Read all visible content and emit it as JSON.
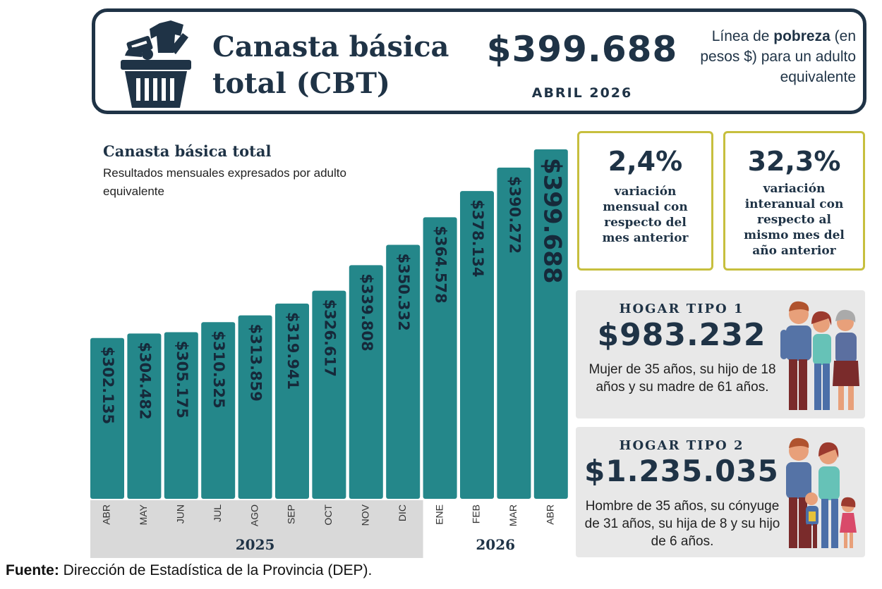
{
  "banner": {
    "title": "Canasta básica total (CBT)",
    "amount": "$399.688",
    "period": "ABRIL 2026",
    "desc_prefix": "Línea de",
    "desc_bold": "pobreza",
    "desc_suffix": "(en pesos $) para un adulto equivalente",
    "icon": "shopping-basket-icon"
  },
  "chart_data": {
    "type": "bar",
    "title": "Canasta básica total",
    "subtitle": "Resultados mensuales expresados por adulto equivalente",
    "categories": [
      "ABR",
      "MAY",
      "JUN",
      "JUL",
      "AGO",
      "SEP",
      "OCT",
      "NOV",
      "DIC",
      "ENE",
      "FEB",
      "MAR",
      "ABR"
    ],
    "values": [
      302135,
      304482,
      305175,
      310325,
      313859,
      319941,
      326617,
      339808,
      350332,
      364578,
      378134,
      390272,
      399688
    ],
    "data_labels": [
      "$302.135",
      "$304.482",
      "$305.175",
      "$310.325",
      "$313.859",
      "$319.941",
      "$326.617",
      "$339.808",
      "$350.332",
      "$364.578",
      "$378.134",
      "$390.272",
      "$399.688"
    ],
    "year_groups": [
      {
        "label": "2025",
        "count": 9
      },
      {
        "label": "2026",
        "count": 4
      }
    ],
    "bar_color": "#24878a",
    "grid": false
  },
  "monthly": {
    "value": "2,4%",
    "text": "variación mensual con respecto del mes anterior"
  },
  "annual": {
    "value": "32,3%",
    "text": "variación interanual con respecto al mismo mes del año anterior"
  },
  "hogar1": {
    "label": "HOGAR TIPO 1",
    "amount": "$983.232",
    "desc": "Mujer de 35 años, su hijo de 18 años y su madre de 61 años.",
    "icon": "family-three-adults-icon"
  },
  "hogar2": {
    "label": "HOGAR TIPO 2",
    "amount": "$1.235.035",
    "desc": "Hombre de 35 años, su cónyuge de 31 años, su hija de 8 y su hijo de 6 años.",
    "icon": "family-with-children-icon"
  },
  "source": {
    "label": "Fuente:",
    "text": "Dirección de Estadística de la Provincia (DEP)."
  },
  "colors": {
    "navy": "#1f3346",
    "teal": "#24878a",
    "olive_border": "#c7bf3e",
    "card_gray": "#e8e8e8",
    "axis_band": "#d9d9d9"
  }
}
